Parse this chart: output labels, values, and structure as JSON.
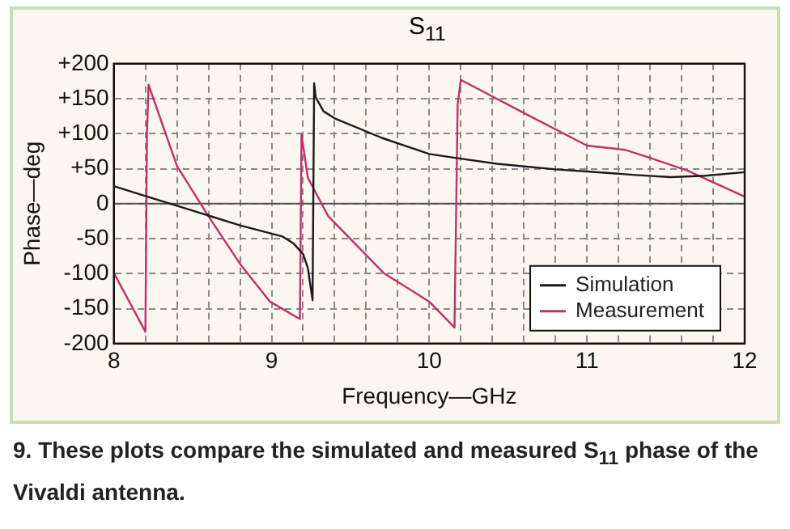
{
  "chart_data": {
    "type": "line",
    "title": "S$_{11}$",
    "xlabel": "Frequency—GHz",
    "ylabel": "Phase—deg",
    "xlim": [
      8,
      12
    ],
    "xticks": [
      8,
      {
        "value": 8.2,
        "label": null
      },
      {
        "value": 8.4,
        "label": null
      },
      {
        "value": 8.6,
        "label": null
      },
      {
        "value": 8.8,
        "label": null
      },
      9,
      {
        "value": 9.2,
        "label": null
      },
      {
        "value": 9.4,
        "label": null
      },
      {
        "value": 9.6,
        "label": null
      },
      {
        "value": 9.8,
        "label": null
      },
      10,
      {
        "value": 10.2,
        "label": null
      },
      {
        "value": 10.4,
        "label": null
      },
      {
        "value": 10.6,
        "label": null
      },
      {
        "value": 10.8,
        "label": null
      },
      11,
      {
        "value": 11.2,
        "label": null
      },
      {
        "value": 11.4,
        "label": null
      },
      {
        "value": 11.6,
        "label": null
      },
      {
        "value": 11.8,
        "label": null
      },
      12
    ],
    "ylim": [
      -200,
      200
    ],
    "yticks": [
      -200,
      -150,
      -100,
      -50,
      0,
      {
        "value": 50,
        "label": "+50"
      },
      {
        "value": 100,
        "label": "+100"
      },
      {
        "value": 150,
        "label": "+150"
      },
      {
        "value": 200,
        "label": "+200"
      }
    ],
    "grid": true,
    "legend": "bottom right",
    "marker": "none",
    "line_style": "solid",
    "ref_lines": [
      {
        "axis": "y",
        "value": 0,
        "color": "#555555"
      }
    ],
    "series": [
      {
        "name": "Simulation",
        "color": "#1a1a1a",
        "x": [
          8.0,
          8.2,
          8.4,
          8.6,
          8.8,
          9.07,
          9.14,
          9.2,
          9.23,
          9.26,
          9.27,
          9.28,
          9.33,
          9.4,
          9.7,
          10.0,
          10.18,
          10.43,
          10.8,
          11.0,
          11.31,
          11.53,
          11.75,
          12.0
        ],
        "values": [
          25,
          11,
          -3,
          -17,
          -31,
          -47,
          -57,
          -72,
          -92,
          -138,
          172,
          152,
          132,
          122,
          94,
          71,
          65,
          57,
          49,
          46,
          41,
          38,
          40,
          45
        ]
      },
      {
        "name": "Measurement",
        "color": "#c0306a",
        "x": [
          8.0,
          8.2,
          8.21,
          8.22,
          8.4,
          8.6,
          8.8,
          8.99,
          9.18,
          9.19,
          9.23,
          9.36,
          9.71,
          10.0,
          10.16,
          10.18,
          10.2,
          10.58,
          11.0,
          11.24,
          11.38,
          11.64,
          12.0
        ],
        "values": [
          -99,
          -183,
          100,
          170,
          54,
          -18,
          -86,
          -140,
          -165,
          99,
          37,
          -18,
          -99,
          -140,
          -177,
          142,
          177,
          132,
          83,
          77,
          67,
          47,
          10
        ]
      }
    ],
    "annotations": [
      "9. These plots compare the simulated and measured S$_{11}$ phase of the Vivaldi antenna."
    ]
  }
}
